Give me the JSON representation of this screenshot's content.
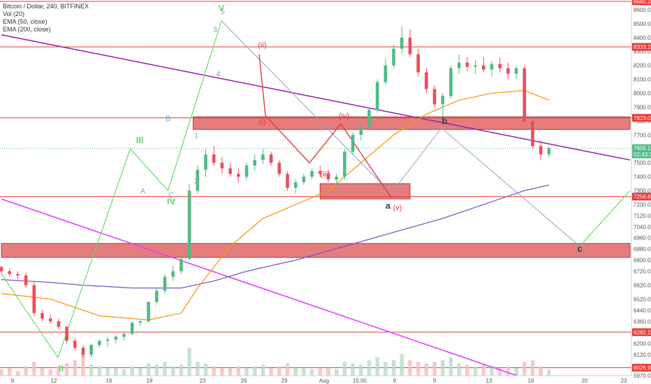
{
  "legend": {
    "symbol": "Bitcoin / Dollar, 240, BITFINEX",
    "vol": "Vol (20)",
    "ema1": "EMA (50, close)",
    "ema2": "EMA (200, close)"
  },
  "colors": {
    "up": "#53b987",
    "down": "#eb4d5c",
    "zone_fill": "#e06666",
    "hline": "#e53935",
    "purple": "#9c27b0",
    "magenta": "#e040fb",
    "ema50": "#f39c12",
    "ema200": "#7e57c2",
    "green_wave": "#66dd66",
    "red_wave": "#e53935",
    "blue_wave": "#8aa4c8"
  },
  "chart_data": {
    "type": "candlestick",
    "x_tick_labels": [
      "9",
      "12",
      "16",
      "19",
      "23",
      "26",
      "29",
      "Aug",
      "15:00",
      "6",
      "9",
      "13",
      "16",
      "20",
      "23"
    ],
    "y_ticks": [
      5970.0,
      6040.0,
      6120.0,
      6200.0,
      6280.0,
      6360.0,
      6440.0,
      6520.0,
      6620.0,
      6720.0,
      6800.0,
      6880.0,
      6960.0,
      7040.0,
      7120.0,
      7200.0,
      7300.0,
      7400.0,
      7500.0,
      7600.0,
      7700.0,
      7800.0,
      7900.0,
      8000.0,
      8100.0,
      8200.0,
      8300.0,
      8400.0,
      8500.0,
      8600.0
    ],
    "y_tick_labels": [
      "5970.0",
      "6040.0",
      "6120.0",
      "6200.0",
      "6280.0",
      "6360.0",
      "6440.0",
      "6520.0",
      "6620.0",
      "6720.0",
      "6800.0",
      "6880.0",
      "6960.0",
      "7040.0",
      "7120.0",
      "7200.0",
      "7300.0",
      "7400.0",
      "7500.0",
      "7600.0",
      "7700.0",
      "7800.0",
      "7900.0",
      "8000.0",
      "8100.0",
      "8200.0",
      "8300.0",
      "8400.0",
      "8500.0",
      "8600.0"
    ],
    "x_range": [
      0,
      100
    ],
    "y_range": [
      5970,
      8660
    ],
    "horizontal_levels": [
      8660.3,
      8333.2,
      7823.0,
      7256.8,
      6282.2,
      6026.9
    ],
    "price_badges": [
      {
        "value": 8660.3,
        "label": "8660.3",
        "color": "#e53935"
      },
      {
        "value": 8333.2,
        "label": "8333.2",
        "color": "#e53935"
      },
      {
        "value": 7823.0,
        "label": "7823.0",
        "color": "#e53935"
      },
      {
        "value": 7605.1,
        "label": "7605.1",
        "color": "#53b987"
      },
      {
        "value": 7560.0,
        "label": "02:43:33",
        "color": "#53b987"
      },
      {
        "value": 7256.8,
        "label": "7256.8",
        "color": "#e53935"
      },
      {
        "value": 6282.2,
        "label": "6282.2",
        "color": "#e53935"
      },
      {
        "value": 6026.9,
        "label": "6026.9",
        "color": "#e53935"
      }
    ],
    "zones": [
      {
        "x0": 0,
        "x1": 100,
        "y0": 6820,
        "y1": 6920
      },
      {
        "x0": 30.5,
        "x1": 100,
        "y0": 7740,
        "y1": 7830
      },
      {
        "x0": 50.7,
        "x1": 65.0,
        "y0": 7240,
        "y1": 7350
      }
    ],
    "candles": [
      [
        0,
        6750,
        6760,
        6700,
        6720
      ],
      [
        1,
        6720,
        6740,
        6680,
        6700
      ],
      [
        2,
        6700,
        6720,
        6660,
        6690
      ],
      [
        3,
        6690,
        6710,
        6600,
        6620
      ],
      [
        4,
        6620,
        6640,
        6400,
        6420
      ],
      [
        5,
        6420,
        6440,
        6360,
        6380
      ],
      [
        6,
        6380,
        6410,
        6340,
        6360
      ],
      [
        7,
        6360,
        6380,
        6300,
        6320
      ],
      [
        8,
        6320,
        6330,
        6200,
        6220
      ],
      [
        9,
        6220,
        6240,
        6150,
        6170
      ],
      [
        10,
        6170,
        6190,
        6100,
        6120
      ],
      [
        11,
        6120,
        6200,
        6100,
        6190
      ],
      [
        12,
        6190,
        6230,
        6170,
        6220
      ],
      [
        13,
        6220,
        6250,
        6180,
        6230
      ],
      [
        14,
        6230,
        6260,
        6200,
        6250
      ],
      [
        15,
        6250,
        6280,
        6220,
        6270
      ],
      [
        16,
        6270,
        6360,
        6260,
        6350
      ],
      [
        17,
        6350,
        6370,
        6330,
        6360
      ],
      [
        18,
        6360,
        6500,
        6350,
        6500
      ],
      [
        19,
        6500,
        6600,
        6480,
        6580
      ],
      [
        20,
        6580,
        6700,
        6560,
        6680
      ],
      [
        21,
        6680,
        6760,
        6650,
        6720
      ],
      [
        22,
        6720,
        6820,
        6700,
        6810
      ],
      [
        23,
        6810,
        7350,
        6800,
        7300
      ],
      [
        24,
        7300,
        7480,
        7280,
        7450
      ],
      [
        25,
        7450,
        7600,
        7400,
        7560
      ],
      [
        26,
        7560,
        7620,
        7480,
        7500
      ],
      [
        27,
        7500,
        7540,
        7420,
        7460
      ],
      [
        28,
        7460,
        7500,
        7400,
        7420
      ],
      [
        29,
        7420,
        7460,
        7360,
        7400
      ],
      [
        30,
        7400,
        7500,
        7380,
        7480
      ],
      [
        31,
        7480,
        7560,
        7440,
        7520
      ],
      [
        32,
        7520,
        7600,
        7490,
        7560
      ],
      [
        33,
        7560,
        7580,
        7480,
        7500
      ],
      [
        34,
        7500,
        7520,
        7400,
        7420
      ],
      [
        35,
        7420,
        7440,
        7300,
        7320
      ],
      [
        36,
        7320,
        7380,
        7280,
        7360
      ],
      [
        37,
        7360,
        7420,
        7340,
        7400
      ],
      [
        38,
        7400,
        7460,
        7380,
        7440
      ],
      [
        39,
        7440,
        7480,
        7400,
        7420
      ],
      [
        40,
        7420,
        7450,
        7360,
        7380
      ],
      [
        41,
        7380,
        7420,
        7340,
        7400
      ],
      [
        42,
        7400,
        7600,
        7380,
        7580
      ],
      [
        43,
        7580,
        7720,
        7560,
        7700
      ],
      [
        44,
        7700,
        7780,
        7660,
        7760
      ],
      [
        45,
        7760,
        7900,
        7740,
        7880
      ],
      [
        46,
        7880,
        8100,
        7860,
        8080
      ],
      [
        47,
        8080,
        8250,
        8060,
        8200
      ],
      [
        48,
        8200,
        8350,
        8180,
        8320
      ],
      [
        49,
        8320,
        8480,
        8280,
        8400
      ],
      [
        50,
        8400,
        8460,
        8260,
        8280
      ],
      [
        51,
        8280,
        8320,
        8120,
        8150
      ],
      [
        52,
        8150,
        8180,
        8000,
        8030
      ],
      [
        53,
        8030,
        8060,
        7900,
        7920
      ],
      [
        54,
        7920,
        8000,
        7820,
        7980
      ],
      [
        55,
        7980,
        8200,
        7960,
        8180
      ],
      [
        56,
        8180,
        8280,
        8140,
        8220
      ],
      [
        57,
        8220,
        8260,
        8160,
        8190
      ],
      [
        58,
        8190,
        8240,
        8140,
        8200
      ],
      [
        59,
        8200,
        8260,
        8150,
        8170
      ],
      [
        60,
        8170,
        8230,
        8120,
        8210
      ],
      [
        61,
        8210,
        8260,
        8150,
        8180
      ],
      [
        62,
        8180,
        8220,
        8100,
        8140
      ],
      [
        63,
        8140,
        8200,
        8100,
        8180
      ],
      [
        64,
        8180,
        8200,
        7780,
        7800
      ],
      [
        65,
        7800,
        7820,
        7600,
        7620
      ],
      [
        66,
        7620,
        7660,
        7520,
        7560
      ],
      [
        67,
        7560,
        7620,
        7540,
        7605
      ]
    ],
    "ema50": [
      [
        0,
        6560
      ],
      [
        6,
        6520
      ],
      [
        12,
        6400
      ],
      [
        18,
        6370
      ],
      [
        22,
        6420
      ],
      [
        24,
        6600
      ],
      [
        28,
        6900
      ],
      [
        32,
        7100
      ],
      [
        36,
        7200
      ],
      [
        40,
        7300
      ],
      [
        44,
        7500
      ],
      [
        48,
        7700
      ],
      [
        52,
        7850
      ],
      [
        56,
        7950
      ],
      [
        60,
        8000
      ],
      [
        64,
        8020
      ],
      [
        67,
        7950
      ]
    ],
    "ema200": [
      [
        0,
        6660
      ],
      [
        6,
        6640
      ],
      [
        10,
        6620
      ],
      [
        16,
        6600
      ],
      [
        22,
        6600
      ],
      [
        26,
        6650
      ],
      [
        30,
        6720
      ],
      [
        36,
        6800
      ],
      [
        42,
        6900
      ],
      [
        48,
        7000
      ],
      [
        54,
        7100
      ],
      [
        60,
        7220
      ],
      [
        64,
        7300
      ],
      [
        67,
        7340
      ]
    ],
    "trendlines": [
      {
        "color": "purple",
        "points": [
          [
            0,
            8420
          ],
          [
            100,
            7520
          ]
        ]
      },
      {
        "color": "magenta",
        "points": [
          [
            0,
            7240
          ],
          [
            82,
            5970
          ]
        ]
      }
    ],
    "green_wave": [
      [
        0,
        6700
      ],
      [
        9,
        6100
      ],
      [
        20.5,
        7600
      ],
      [
        26.5,
        7300
      ],
      [
        35,
        8520
      ]
    ],
    "green_wave_2": [
      [
        92,
        6900
      ],
      [
        100,
        7300
      ]
    ],
    "blue_wave": [
      [
        35,
        8520
      ],
      [
        62,
        7280
      ],
      [
        70,
        7750
      ],
      [
        92,
        6900
      ]
    ],
    "red_wave": [
      [
        41,
        8280
      ],
      [
        42,
        7840
      ],
      [
        49,
        7500
      ],
      [
        54,
        7780
      ],
      [
        62,
        7250
      ]
    ],
    "wave_labels": [
      {
        "text": "II",
        "x": 9.5,
        "y": 6000,
        "color": "green_wave",
        "bold": true
      },
      {
        "text": "III",
        "x": 22,
        "y": 7640,
        "color": "green_wave",
        "bold": true
      },
      {
        "text": "IV",
        "x": 27,
        "y": 7200,
        "color": "green_wave",
        "bold": true
      },
      {
        "text": "V",
        "x": 35,
        "y": 8590,
        "color": "green_wave",
        "bold": true
      },
      {
        "text": "A",
        "x": 22.5,
        "y": 7280,
        "color": "blue_wave",
        "bold": false
      },
      {
        "text": "B",
        "x": 26.5,
        "y": 7800,
        "color": "blue_wave",
        "bold": false
      },
      {
        "text": "C",
        "x": 27,
        "y": 7250,
        "color": "blue_wave",
        "bold": false
      },
      {
        "text": "1",
        "x": 31,
        "y": 7680,
        "color": "blue_wave",
        "bold": false
      },
      {
        "text": "2",
        "x": 31,
        "y": 7350,
        "color": "blue_wave",
        "bold": false
      },
      {
        "text": "3",
        "x": 34,
        "y": 8440,
        "color": "blue_wave",
        "bold": false
      },
      {
        "text": "4",
        "x": 34.5,
        "y": 8120,
        "color": "blue_wave",
        "bold": false
      },
      {
        "text": "5",
        "x": 35.2,
        "y": 8570,
        "color": "blue_wave",
        "bold": false
      },
      {
        "text": "(ii)",
        "x": 41.5,
        "y": 8330,
        "color": "red_wave",
        "bold": false
      },
      {
        "text": "(i)",
        "x": 41.5,
        "y": 7780,
        "color": "red_wave",
        "bold": false
      },
      {
        "text": "(iii)",
        "x": 51.5,
        "y": 7400,
        "color": "red_wave",
        "bold": false
      },
      {
        "text": "(iv)",
        "x": 54.5,
        "y": 7820,
        "color": "red_wave",
        "bold": false
      },
      {
        "text": "(v)",
        "x": 63,
        "y": 7160,
        "color": "red_wave",
        "bold": false
      },
      {
        "text": "a",
        "x": 61.5,
        "y": 7170,
        "color": "wave_abc",
        "bold": true
      },
      {
        "text": "b",
        "x": 70.5,
        "y": 7780,
        "color": "wave_abc",
        "bold": true
      },
      {
        "text": "c",
        "x": 92,
        "y": 6860,
        "color": "wave_abc",
        "bold": true
      }
    ],
    "volume": [
      4,
      5,
      3,
      6,
      9,
      5,
      4,
      6,
      8,
      10,
      14,
      7,
      6,
      5,
      5,
      4,
      6,
      5,
      8,
      7,
      9,
      6,
      7,
      18,
      9,
      8,
      6,
      5,
      5,
      6,
      5,
      6,
      7,
      5,
      6,
      8,
      5,
      5,
      4,
      5,
      5,
      4,
      9,
      8,
      7,
      10,
      12,
      9,
      10,
      14,
      10,
      9,
      8,
      9,
      10,
      12,
      8,
      7,
      6,
      7,
      6,
      5,
      6,
      5,
      9,
      10,
      6,
      4
    ]
  }
}
